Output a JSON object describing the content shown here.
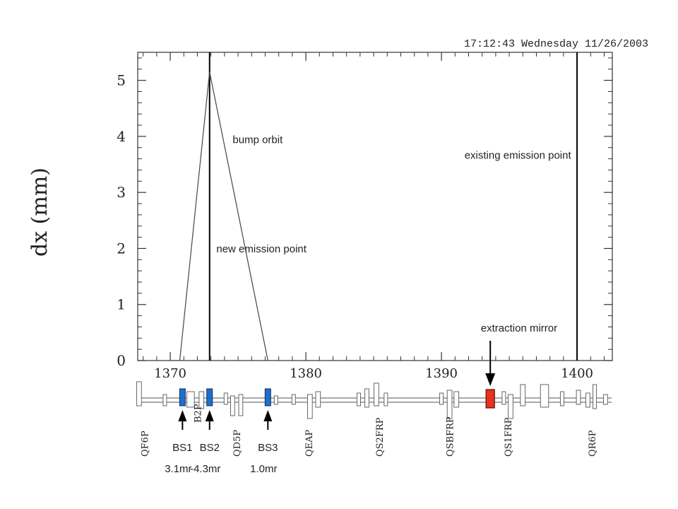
{
  "timestamp": "17:12:43 Wednesday 11/26/2003",
  "chart_data": {
    "type": "line",
    "ylabel": "dx (mm)",
    "xlabel": "",
    "xlim": [
      1367.6,
      1402.6
    ],
    "ylim": [
      0,
      5.5
    ],
    "x_ticks": [
      1370,
      1380,
      1390,
      1400
    ],
    "y_ticks": [
      0,
      1,
      2,
      3,
      4,
      5
    ],
    "series": [
      {
        "x": [
          1370.7,
          1372.9,
          1377.2
        ],
        "y": [
          0,
          5.15,
          0
        ]
      }
    ],
    "vertical_lines": [
      1372.9,
      1400.0
    ],
    "annotations": [
      {
        "text": "bump orbit",
        "x": 1374.6,
        "y": 3.88
      },
      {
        "text": "existing emission point",
        "x": 1391.7,
        "y": 3.6
      },
      {
        "text": "new emission point",
        "x": 1373.4,
        "y": 1.93
      },
      {
        "text": "extraction mirror",
        "x": 1392.9,
        "y": 0.52
      }
    ],
    "lattice": {
      "blue_magnets": [
        1370.9,
        1372.9,
        1377.2
      ],
      "red_magnet": 1393.6,
      "element_labels": [
        {
          "text": "QF6P",
          "x": 1368.1
        },
        {
          "text": "B2P",
          "x": 1372.0
        },
        {
          "text": "QD5P",
          "x": 1374.9
        },
        {
          "text": "QEAP",
          "x": 1380.2
        },
        {
          "text": "QS2FRP",
          "x": 1385.4
        },
        {
          "text": "QSBFRP",
          "x": 1390.6
        },
        {
          "text": "QS1FRP",
          "x": 1394.9
        },
        {
          "text": "QR6P",
          "x": 1401.1
        }
      ],
      "bump_magnets": [
        {
          "name": "BS1",
          "kick": "3.1mr",
          "x": 1370.9
        },
        {
          "name": "BS2",
          "kick": "-4.3mr",
          "x": 1372.9
        },
        {
          "name": "BS3",
          "kick": "1.0mr",
          "x": 1377.2
        }
      ]
    }
  }
}
